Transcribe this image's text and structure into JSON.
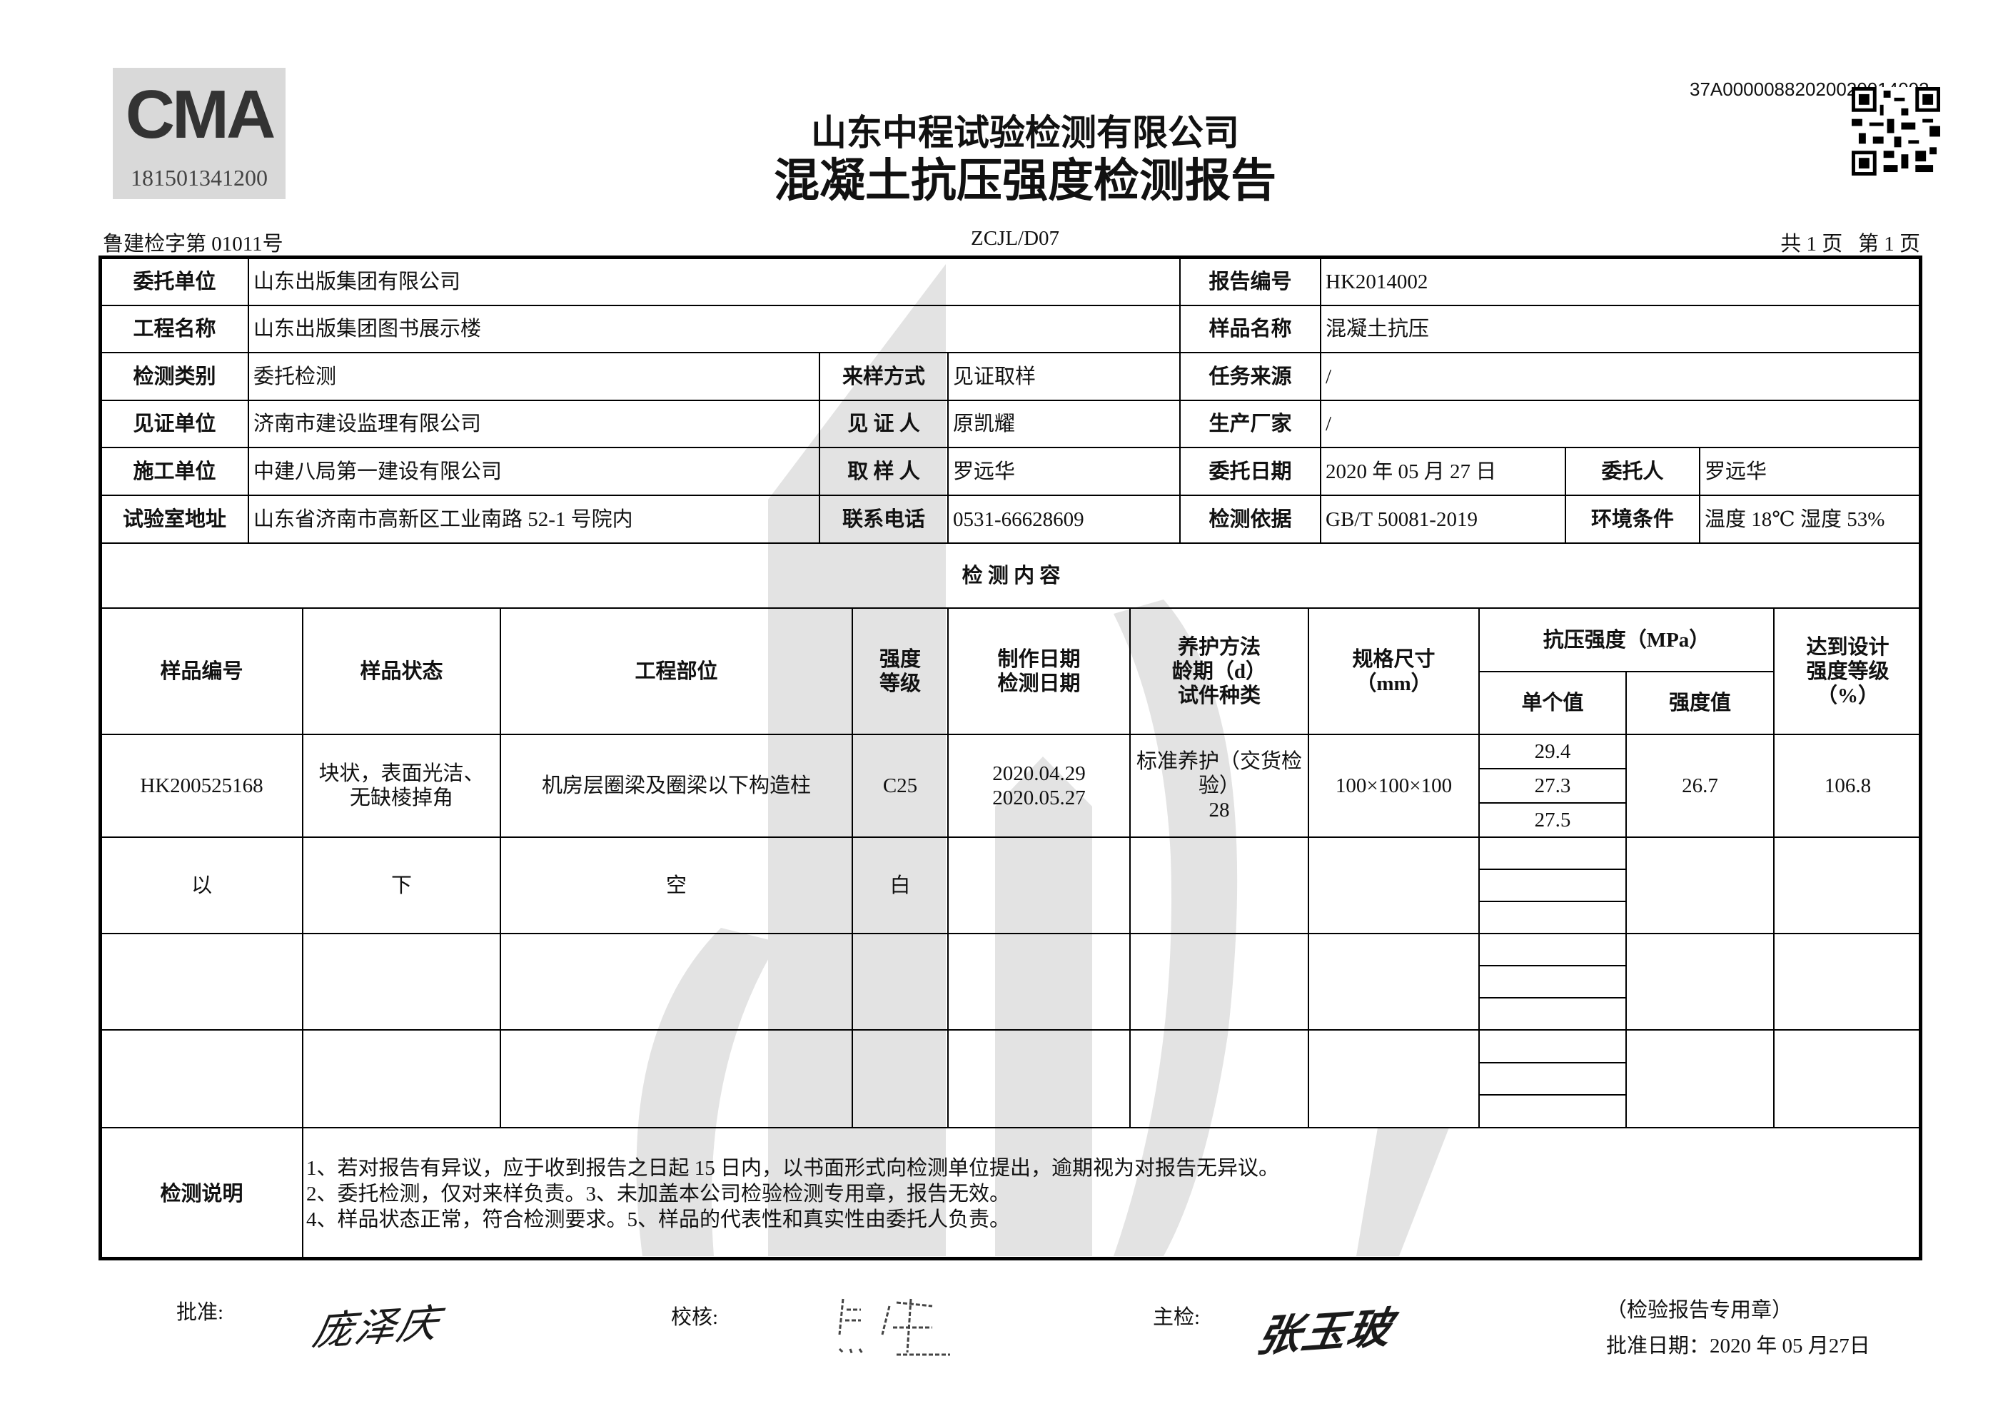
{
  "header": {
    "cma_logo_text": "CMA",
    "cma_number": "181501341200",
    "company": "山东中程试验检测有限公司",
    "report_title": "混凝土抗压强度检测报告",
    "report_code": "37A00000882020020014002",
    "qr_code": "qr-code-icon",
    "cert_no": "鲁建检字第 01011号",
    "form_code": "ZCJL/D07",
    "page_info": "共 1 页   第 1 页"
  },
  "info": {
    "client_label": "委托单位",
    "client": "山东出版集团有限公司",
    "report_no_label": "报告编号",
    "report_no": "HK2014002",
    "project_label": "工程名称",
    "project": "山东出版集团图书展示楼",
    "sample_name_label": "样品名称",
    "sample_name": "混凝土抗压",
    "test_type_label": "检测类别",
    "test_type": "委托检测",
    "sampling_method_label": "来样方式",
    "sampling_method": "见证取样",
    "task_source_label": "任务来源",
    "task_source": "/",
    "witness_unit_label": "见证单位",
    "witness_unit": "济南市建设监理有限公司",
    "witness_label": "见 证 人",
    "witness": "原凯耀",
    "manufacturer_label": "生产厂家",
    "manufacturer": "/",
    "contractor_label": "施工单位",
    "contractor": "中建八局第一建设有限公司",
    "sampler_label": "取 样 人",
    "sampler": "罗远华",
    "entrust_date_label": "委托日期",
    "entrust_date": "2020 年 05 月 27 日",
    "entruster_label": "委托人",
    "entruster": "罗远华",
    "lab_address_label": "试验室地址",
    "lab_address": "山东省济南市高新区工业南路 52-1 号院内",
    "phone_label": "联系电话",
    "phone": "0531-66628609",
    "basis_label": "检测依据",
    "basis": "GB/T  50081-2019",
    "env_label": "环境条件",
    "env": "温度 18℃  湿度 53%"
  },
  "content": {
    "section_title": "检  测  内  容",
    "columns": {
      "sample_no": "样品编号",
      "sample_state": "样品状态",
      "location": "工程部位",
      "grade": "强度\n等级",
      "dates": "制作日期\n检测日期",
      "curing": "养护方法\n龄期（d）\n试件种类",
      "size": "规格尺寸\n（mm）",
      "strength": "抗压强度（MPa）",
      "single": "单个值",
      "strength_value": "强度值",
      "percent": "达到设计\n强度等级\n（%）"
    },
    "rows": [
      {
        "sample_no": "HK200525168",
        "sample_state": "块状，表面光洁、\n无缺棱掉角",
        "location": "机房层圈梁及圈梁以下构造柱",
        "grade": "C25",
        "dates": "2020.04.29\n2020.05.27",
        "curing": "标准养护（交货检\n验）\n28",
        "size": "100×100×100",
        "single": [
          "29.4",
          "27.3",
          "27.5"
        ],
        "strength_value": "26.7",
        "percent": "106.8"
      },
      {
        "sample_no": "以",
        "sample_state": "下",
        "location": "空",
        "grade": "白"
      }
    ]
  },
  "notes": {
    "label": "检测说明",
    "text": "1、若对报告有异议，应于收到报告之日起 15 日内，以书面形式向检测单位提出，逾期视为对报告无异议。\n2、委托检测，仅对来样负责。3、未加盖本公司检验检测专用章，报告无效。\n4、样品状态正常，符合检测要求。5、样品的代表性和真实性由委托人负责。"
  },
  "footer": {
    "approve_label": "批准:",
    "approve_signature": "庞泽庆",
    "review_label": "校核:",
    "review_signature": "焦健",
    "inspector_label": "主检:",
    "inspector_signature": "张玉玻",
    "seal_note": "（检验报告专用章）",
    "approve_date": "批准日期：2020 年 05 月27日"
  },
  "colors": {
    "watermark": "#e3e3e3",
    "border": "#000000"
  }
}
